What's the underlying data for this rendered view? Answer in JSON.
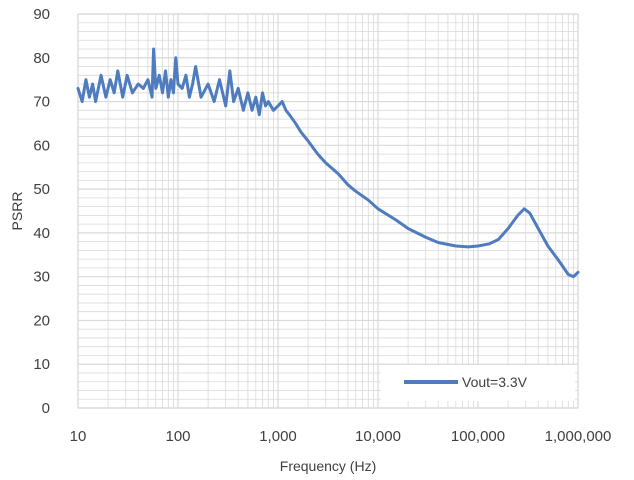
{
  "chart_data": {
    "type": "line",
    "xlabel": "Frequency (Hz)",
    "ylabel": "PSRR",
    "x_scale": "log",
    "xlim": [
      10,
      1000000
    ],
    "ylim": [
      0,
      90
    ],
    "x_ticks": [
      10,
      100,
      1000,
      10000,
      100000,
      1000000
    ],
    "x_tick_labels": [
      "10",
      "100",
      "1,000",
      "10,000",
      "100,000",
      "1,000,000"
    ],
    "y_ticks": [
      0,
      10,
      20,
      30,
      40,
      50,
      60,
      70,
      80,
      90
    ],
    "y_tick_labels": [
      "0",
      "10",
      "20",
      "30",
      "40",
      "50",
      "60",
      "70",
      "80",
      "90"
    ],
    "grid": true,
    "legend_position": "bottom-right",
    "colors": {
      "series": "#4f7bbf",
      "grid": "#d9d9d9",
      "border": "#d9d9d9"
    },
    "series": [
      {
        "name": "Vout=3.3V",
        "x": [
          10,
          11,
          12,
          13,
          14,
          15,
          17,
          19,
          21,
          23,
          25,
          28,
          31,
          35,
          40,
          45,
          50,
          55,
          57,
          60,
          65,
          70,
          75,
          80,
          85,
          90,
          95,
          100,
          110,
          120,
          130,
          140,
          150,
          170,
          200,
          230,
          260,
          300,
          330,
          360,
          400,
          450,
          500,
          550,
          600,
          650,
          700,
          750,
          800,
          900,
          1000,
          1100,
          1200,
          1300,
          1500,
          1700,
          2000,
          2500,
          3000,
          4000,
          5000,
          6000,
          8000,
          10000,
          15000,
          20000,
          30000,
          40000,
          60000,
          80000,
          100000,
          130000,
          160000,
          200000,
          250000,
          290000,
          330000,
          400000,
          500000,
          650000,
          800000,
          900000,
          1000000
        ],
        "y": [
          73,
          70,
          75,
          71,
          74,
          70,
          76,
          71,
          75,
          72,
          77,
          71,
          76,
          72,
          74,
          73,
          75,
          71,
          82,
          73,
          76,
          72,
          77,
          71,
          75,
          72,
          80,
          74,
          73,
          76,
          71,
          74,
          78,
          71,
          74,
          70,
          75,
          69,
          77,
          70,
          73,
          68,
          72,
          68,
          71,
          67,
          72,
          69,
          70,
          68,
          69,
          70,
          68,
          67,
          65,
          63,
          61,
          58,
          56,
          53.5,
          51,
          49.5,
          47.5,
          45.5,
          43,
          41,
          39,
          37.8,
          37,
          36.8,
          37,
          37.5,
          38.5,
          41,
          44,
          45.5,
          44.5,
          41,
          37,
          33.5,
          30.5,
          30,
          31
        ]
      }
    ]
  }
}
